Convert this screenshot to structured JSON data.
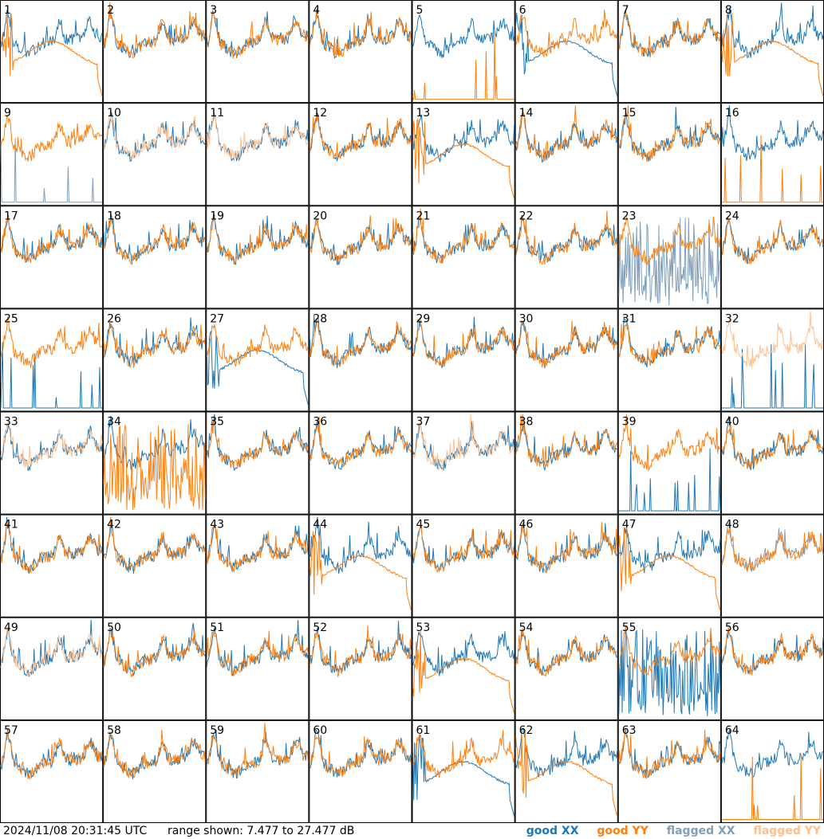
{
  "chart_data": {
    "type": "line",
    "layout": "8x8 grid of spectrum panels",
    "antennas": [
      "1",
      "2",
      "3",
      "4",
      "5",
      "6",
      "7",
      "8",
      "9",
      "10",
      "11",
      "12",
      "13",
      "14",
      "15",
      "16",
      "17",
      "18",
      "19",
      "20",
      "21",
      "22",
      "23",
      "24",
      "25",
      "26",
      "27",
      "28",
      "29",
      "30",
      "31",
      "32",
      "33",
      "34",
      "35",
      "36",
      "37",
      "38",
      "39",
      "40",
      "41",
      "42",
      "43",
      "44",
      "45",
      "46",
      "47",
      "48",
      "49",
      "50",
      "51",
      "52",
      "53",
      "54",
      "55",
      "56",
      "57",
      "58",
      "59",
      "60",
      "61",
      "62",
      "63",
      "64"
    ],
    "y_range_db": [
      7.477,
      27.477
    ],
    "series": [
      {
        "name": "good XX",
        "color": "#1f77b4"
      },
      {
        "name": "good YY",
        "color": "#ff7f0e"
      },
      {
        "name": "flagged XX",
        "color": "#7f9fba"
      },
      {
        "name": "flagged YY",
        "color": "#ffc08e"
      }
    ],
    "panel_styles": {
      "1": "yy_drop",
      "5": "yy_spikes",
      "6": "xx_drop",
      "8": "yy_drop",
      "9": "flagxx_spikes",
      "10": "flagyy",
      "11": "flagyy",
      "13": "yy_drop",
      "16": "yy_spikes",
      "23": "flagxx_noisy",
      "25": "xx_spikes",
      "27": "xx_drop",
      "32": "flagyy_only",
      "33": "flagyy",
      "34": "yy_noisy",
      "37": "flagyy",
      "39": "xx_spikes",
      "44": "yy_drop",
      "47": "yy_drop",
      "48": "flagxx",
      "49": "flagyy",
      "53": "yy_drop",
      "55": "xx_noisy",
      "61": "xx_drop",
      "62": "yy_drop",
      "64": "yy_spikes"
    }
  },
  "footer": {
    "timestamp": "2024/11/08 20:31:45 UTC",
    "range": "range shown: 7.477 to 27.477 dB",
    "legend": {
      "good_xx": "good XX",
      "good_yy": "good YY",
      "flagged_xx": "flagged XX",
      "flagged_yy": "flagged YY"
    }
  }
}
